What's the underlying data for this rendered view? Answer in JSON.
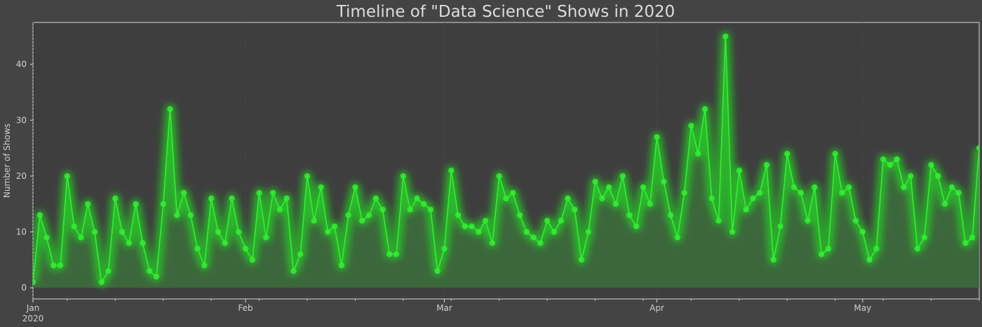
{
  "chart_data": {
    "type": "line",
    "title": "Timeline of \"Data Science\" Shows in 2020",
    "xlabel": "",
    "ylabel": "Number of Shows",
    "x_start": "2020-01-01",
    "xlim": [
      "2020-01-01",
      "2020-05-18"
    ],
    "ylim": [
      -2,
      47.5
    ],
    "y_ticks": [
      0,
      10,
      20,
      30,
      40
    ],
    "x_ticks": [
      {
        "date": "2020-01-01",
        "label": "Jan",
        "sublabel": "2020"
      },
      {
        "date": "2020-02-01",
        "label": "Feb",
        "sublabel": ""
      },
      {
        "date": "2020-03-01",
        "label": "Mar",
        "sublabel": ""
      },
      {
        "date": "2020-04-01",
        "label": "Apr",
        "sublabel": ""
      },
      {
        "date": "2020-05-01",
        "label": "May",
        "sublabel": ""
      }
    ],
    "grid": true,
    "area_fill": true,
    "series": [
      {
        "values": [
          1,
          13,
          9,
          4,
          4,
          20,
          11,
          9,
          15,
          10,
          1,
          3,
          16,
          10,
          8,
          15,
          8,
          3,
          2,
          15,
          32,
          13,
          17,
          13,
          7,
          4,
          16,
          10,
          8,
          16,
          10,
          7,
          5,
          17,
          9,
          17,
          14,
          16,
          3,
          6,
          20,
          12,
          18,
          10,
          11,
          4,
          13,
          18,
          12,
          13,
          16,
          14,
          6,
          6,
          20,
          14,
          16,
          15,
          14,
          3,
          7,
          21,
          13,
          11,
          11,
          10,
          12,
          8,
          20,
          16,
          17,
          13,
          10,
          9,
          8,
          12,
          10,
          12,
          16,
          14,
          5,
          10,
          19,
          16,
          18,
          15,
          20,
          13,
          11,
          18,
          15,
          27,
          19,
          13,
          9,
          17,
          29,
          24,
          32,
          16,
          12,
          45,
          10,
          21,
          14,
          16,
          17,
          22,
          5,
          11,
          24,
          18,
          17,
          12,
          18,
          6,
          7,
          24,
          17,
          18,
          12,
          10,
          5,
          7,
          23,
          22,
          23,
          18,
          20,
          7,
          9,
          22,
          20,
          15,
          18,
          17,
          8,
          9,
          25
        ]
      }
    ],
    "colors": {
      "line": "#33ee33",
      "glow": "#22dd22",
      "fill": "#3c6b3c",
      "background": "#444444",
      "grid": "#5c5c5c"
    }
  }
}
